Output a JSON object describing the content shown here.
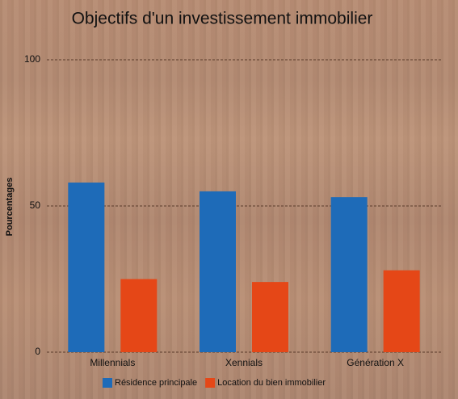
{
  "chart_data": {
    "type": "bar",
    "title": "Objectifs d'un investissement immobilier",
    "y_label": "Pourcentages",
    "categories": [
      "Millennials",
      "Xennials",
      "Génération X"
    ],
    "series": [
      {
        "name": "Résidence principale",
        "color": "#1e6bb8",
        "values": [
          58,
          55,
          53
        ]
      },
      {
        "name": "Location du bien immobilier",
        "color": "#e54717",
        "values": [
          25,
          24,
          28
        ]
      }
    ],
    "ylim": [
      0,
      100
    ],
    "yticks": [
      0,
      50,
      100
    ],
    "grid": true
  }
}
